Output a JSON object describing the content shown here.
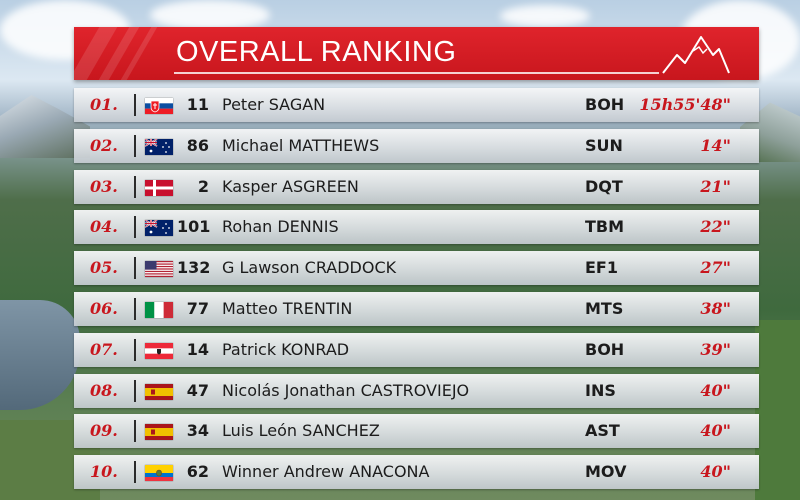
{
  "header": {
    "title": "OVERALL RANKING"
  },
  "colors": {
    "accent": "#c8161d",
    "text": "#1c1c1c"
  },
  "rows": [
    {
      "rank": "01.",
      "flag": "svk",
      "bib": "11",
      "name": "Peter SAGAN",
      "team": "BOH",
      "time": "15h55'48\""
    },
    {
      "rank": "02.",
      "flag": "aus",
      "bib": "86",
      "name": "Michael MATTHEWS",
      "team": "SUN",
      "time": "14\""
    },
    {
      "rank": "03.",
      "flag": "den",
      "bib": "2",
      "name": "Kasper ASGREEN",
      "team": "DQT",
      "time": "21\""
    },
    {
      "rank": "04.",
      "flag": "aus",
      "bib": "101",
      "name": "Rohan DENNIS",
      "team": "TBM",
      "time": "22\""
    },
    {
      "rank": "05.",
      "flag": "usa",
      "bib": "132",
      "name": "G Lawson CRADDOCK",
      "team": "EF1",
      "time": "27\""
    },
    {
      "rank": "06.",
      "flag": "ita",
      "bib": "77",
      "name": "Matteo TRENTIN",
      "team": "MTS",
      "time": "38\""
    },
    {
      "rank": "07.",
      "flag": "aut",
      "bib": "14",
      "name": "Patrick KONRAD",
      "team": "BOH",
      "time": "39\""
    },
    {
      "rank": "08.",
      "flag": "esp",
      "bib": "47",
      "name": "Nicolás Jonathan CASTROVIEJO",
      "team": "INS",
      "time": "40\""
    },
    {
      "rank": "09.",
      "flag": "esp",
      "bib": "34",
      "name": "Luis León SANCHEZ",
      "team": "AST",
      "time": "40\""
    },
    {
      "rank": "10.",
      "flag": "ecu",
      "bib": "62",
      "name": "Winner Andrew ANACONA",
      "team": "MOV",
      "time": "40\""
    }
  ]
}
